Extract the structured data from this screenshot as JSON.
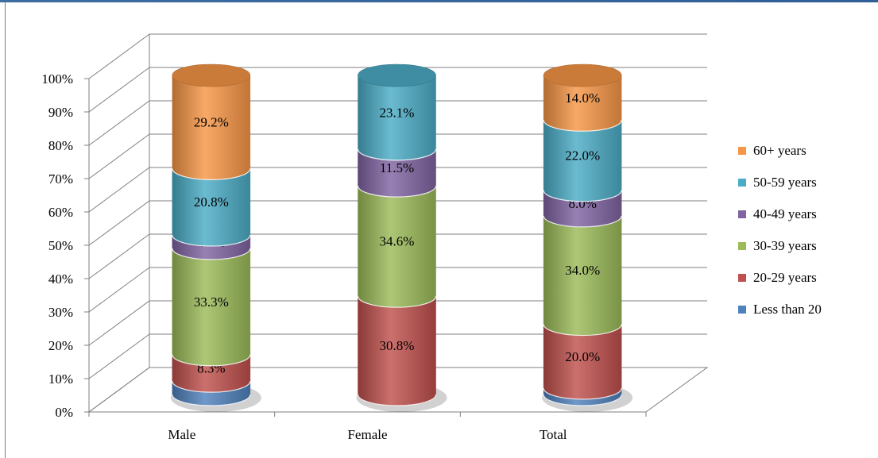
{
  "chart_data": {
    "type": "bar",
    "stacked": true,
    "percent": true,
    "style": "3d-cylinder",
    "categories": [
      "Male",
      "Female",
      "Total"
    ],
    "y_ticks": [
      "0%",
      "10%",
      "20%",
      "30%",
      "40%",
      "50%",
      "60%",
      "70%",
      "80%",
      "90%",
      "100%"
    ],
    "ylim": [
      0,
      100
    ],
    "grid": true,
    "legend_position": "right",
    "series": [
      {
        "name": "Less than 20",
        "color": "#4f81bd",
        "values": [
          4.2,
          0,
          2.0
        ],
        "labels": [
          "",
          "",
          ""
        ]
      },
      {
        "name": "20-29 years",
        "color": "#c0504d",
        "values": [
          8.3,
          30.8,
          20.0
        ],
        "labels": [
          "8.3%",
          "30.8%",
          "20.0%"
        ]
      },
      {
        "name": "30-39 years",
        "color": "#9bbb59",
        "values": [
          33.3,
          34.6,
          34.0
        ],
        "labels": [
          "33.3%",
          "34.6%",
          "34.0%"
        ]
      },
      {
        "name": "40-49 years",
        "color": "#8064a2",
        "values": [
          4.2,
          11.5,
          8.0
        ],
        "labels": [
          "4.2%",
          "11.5%",
          "8.0%"
        ]
      },
      {
        "name": "50-59 years",
        "color": "#4bacc6",
        "values": [
          20.8,
          23.1,
          22.0
        ],
        "labels": [
          "20.8%",
          "23.1%",
          "22.0%"
        ]
      },
      {
        "name": "60+  years",
        "color": "#f79646",
        "values": [
          29.2,
          0,
          14.0
        ],
        "labels": [
          "29.2%",
          "",
          "14.0%"
        ]
      }
    ]
  }
}
